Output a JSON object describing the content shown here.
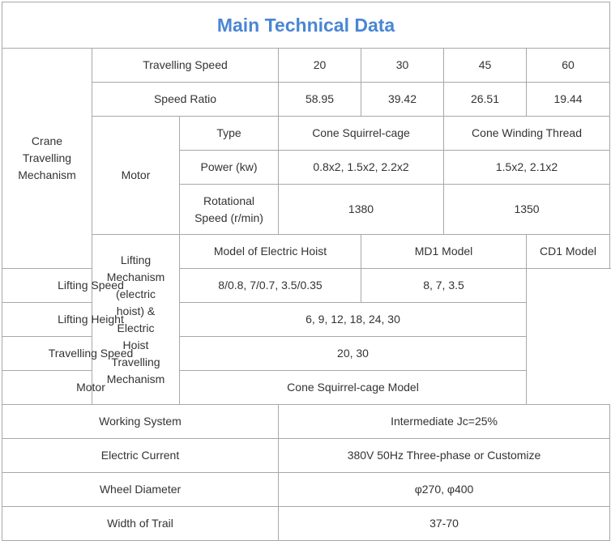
{
  "title": "Main Technical Data",
  "crane": {
    "label": "Crane Travelling Mechanism",
    "travelling_speed": {
      "label": "Travelling Speed",
      "values": [
        "20",
        "30",
        "45",
        "60"
      ]
    },
    "speed_ratio": {
      "label": "Speed Ratio",
      "values": [
        "58.95",
        "39.42",
        "26.51",
        "19.44"
      ]
    },
    "motor": {
      "label": "Motor",
      "type": {
        "label": "Type",
        "values": [
          "Cone Squirrel-cage",
          "Cone Winding Thread"
        ]
      },
      "power": {
        "label": "Power (kw)",
        "values": [
          "0.8x2, 1.5x2, 2.2x2",
          "1.5x2, 2.1x2"
        ]
      },
      "rotational_speed": {
        "label": "Rotational Speed (r/min)",
        "values": [
          "1380",
          "1350"
        ]
      }
    }
  },
  "lifting": {
    "label": "Lifting Mechanism (electric hoist) & Electric Hoist Travelling Mechanism",
    "model": {
      "label": "Model of Electric Hoist",
      "values": [
        "MD1 Model",
        "CD1 Model"
      ]
    },
    "lifting_speed": {
      "label": "Lifting Speed",
      "values": [
        "8/0.8, 7/0.7, 3.5/0.35",
        "8, 7, 3.5"
      ]
    },
    "lifting_height": {
      "label": "Lifting Height",
      "value": "6, 9, 12, 18, 24, 30"
    },
    "travelling_speed": {
      "label": "Travelling Speed",
      "value": "20, 30"
    },
    "motor": {
      "label": "Motor",
      "value": "Cone Squirrel-cage Model"
    }
  },
  "general": [
    {
      "label": "Working System",
      "value": "Intermediate Jc=25%"
    },
    {
      "label": "Electric Current",
      "value": "380V 50Hz Three-phase or Customize"
    },
    {
      "label": "Wheel Diameter",
      "value": "φ270, φ400"
    },
    {
      "label": "Width of Trail",
      "value": "37-70"
    }
  ]
}
